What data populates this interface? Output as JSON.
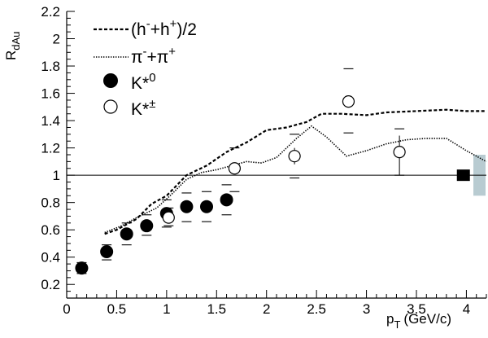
{
  "chart_data": {
    "type": "scatter",
    "title": "",
    "x_axis": {
      "label_main": "p",
      "label_sub": "T",
      "label_unit": "(GeV/c)",
      "range": [
        0,
        4.2
      ],
      "ticks": [
        "0",
        "0.5",
        "1",
        "1.5",
        "2",
        "2.5",
        "3",
        "3.5",
        "4"
      ]
    },
    "y_axis": {
      "label_main": "R",
      "label_sub": "dAu",
      "range": [
        0.1,
        2.2
      ],
      "ticks": [
        "0.2",
        "0.4",
        "0.6",
        "0.8",
        "1",
        "1.2",
        "1.4",
        "1.6",
        "1.8",
        "2",
        "2.2"
      ]
    },
    "reference_line": {
      "y": 1.0
    },
    "legend": {
      "placement": "top-left",
      "entries": [
        {
          "id": "hadrons",
          "style": "dashed-line",
          "text": "(h",
          "sup1": "-",
          "mid": "+h",
          "sup2": "+",
          "tail": ")/2"
        },
        {
          "id": "pions",
          "style": "dotted-line",
          "text": "π",
          "sup1": "-",
          "mid": "+π",
          "sup2": "+",
          "tail": ""
        },
        {
          "id": "kstar0",
          "style": "filled-circle",
          "text": "K*",
          "sup1": "0",
          "mid": "",
          "sup2": "",
          "tail": ""
        },
        {
          "id": "kstarpm",
          "style": "open-circle",
          "text": "K*",
          "sup1": "±",
          "mid": "",
          "sup2": "",
          "tail": ""
        }
      ]
    },
    "series": [
      {
        "id": "hadrons",
        "style": "dashed",
        "points": [
          [
            0.38,
            0.57
          ],
          [
            0.5,
            0.6
          ],
          [
            0.7,
            0.68
          ],
          [
            0.85,
            0.79
          ],
          [
            1.0,
            0.85
          ],
          [
            1.2,
            1.0
          ],
          [
            1.4,
            1.07
          ],
          [
            1.6,
            1.17
          ],
          [
            1.8,
            1.24
          ],
          [
            2.0,
            1.33
          ],
          [
            2.2,
            1.35
          ],
          [
            2.4,
            1.39
          ],
          [
            2.55,
            1.45
          ],
          [
            2.75,
            1.45
          ],
          [
            3.0,
            1.44
          ],
          [
            3.2,
            1.46
          ],
          [
            3.5,
            1.47
          ],
          [
            3.8,
            1.48
          ],
          [
            4.0,
            1.47
          ],
          [
            4.2,
            1.47
          ]
        ]
      },
      {
        "id": "pions",
        "style": "dotted",
        "points": [
          [
            0.38,
            0.58
          ],
          [
            0.55,
            0.63
          ],
          [
            0.7,
            0.69
          ],
          [
            0.9,
            0.76
          ],
          [
            1.05,
            0.86
          ],
          [
            1.2,
            0.97
          ],
          [
            1.35,
            1.02
          ],
          [
            1.5,
            1.04
          ],
          [
            1.65,
            1.07
          ],
          [
            1.8,
            1.1
          ],
          [
            1.95,
            1.09
          ],
          [
            2.1,
            1.13
          ],
          [
            2.3,
            1.27
          ],
          [
            2.45,
            1.36
          ],
          [
            2.6,
            1.28
          ],
          [
            2.8,
            1.14
          ],
          [
            3.0,
            1.18
          ],
          [
            3.2,
            1.23
          ],
          [
            3.4,
            1.26
          ],
          [
            3.6,
            1.27
          ],
          [
            3.8,
            1.27
          ],
          [
            4.0,
            1.18
          ],
          [
            4.2,
            1.1
          ]
        ]
      },
      {
        "id": "kstar0",
        "marker": "filled",
        "points": [
          {
            "x": 0.15,
            "y": 0.32,
            "sys_low": 0.28,
            "sys_high": 0.36
          },
          {
            "x": 0.4,
            "y": 0.44,
            "sys_low": 0.38,
            "sys_high": 0.49
          },
          {
            "x": 0.6,
            "y": 0.57,
            "sys_low": 0.49,
            "sys_high": 0.65
          },
          {
            "x": 0.8,
            "y": 0.63,
            "sys_low": 0.56,
            "sys_high": 0.71
          },
          {
            "x": 1.0,
            "y": 0.72,
            "sys_low": 0.62,
            "sys_high": 0.82
          },
          {
            "x": 1.2,
            "y": 0.77,
            "sys_low": 0.66,
            "sys_high": 0.87
          },
          {
            "x": 1.4,
            "y": 0.77,
            "sys_low": 0.66,
            "sys_high": 0.88
          },
          {
            "x": 1.6,
            "y": 0.82,
            "sys_low": 0.71,
            "sys_high": 0.93
          }
        ]
      },
      {
        "id": "kstarpm",
        "marker": "open",
        "points": [
          {
            "x": 1.02,
            "y": 0.69,
            "sys_low": 0.63,
            "sys_high": 0.76
          },
          {
            "x": 1.68,
            "y": 1.05,
            "sys_low": 0.88,
            "sys_high": 1.2
          },
          {
            "x": 2.28,
            "y": 1.14,
            "sys_low": 0.98,
            "sys_high": 1.3,
            "stat_low": 1.08,
            "stat_high": 1.2
          },
          {
            "x": 2.82,
            "y": 1.54,
            "sys_low": 1.31,
            "sys_high": 1.78
          },
          {
            "x": 3.33,
            "y": 1.17,
            "sys_low": 1.0,
            "sys_high": 1.34,
            "stat_low": 1.0,
            "stat_high": 1.29
          }
        ]
      }
    ],
    "normalization_box": {
      "x": 3.97,
      "y": 1.0,
      "box_low": 0.85,
      "box_high": 1.15
    },
    "colors": {
      "axis": "#000000",
      "uncertainty_box": "#b8cbd1"
    }
  }
}
